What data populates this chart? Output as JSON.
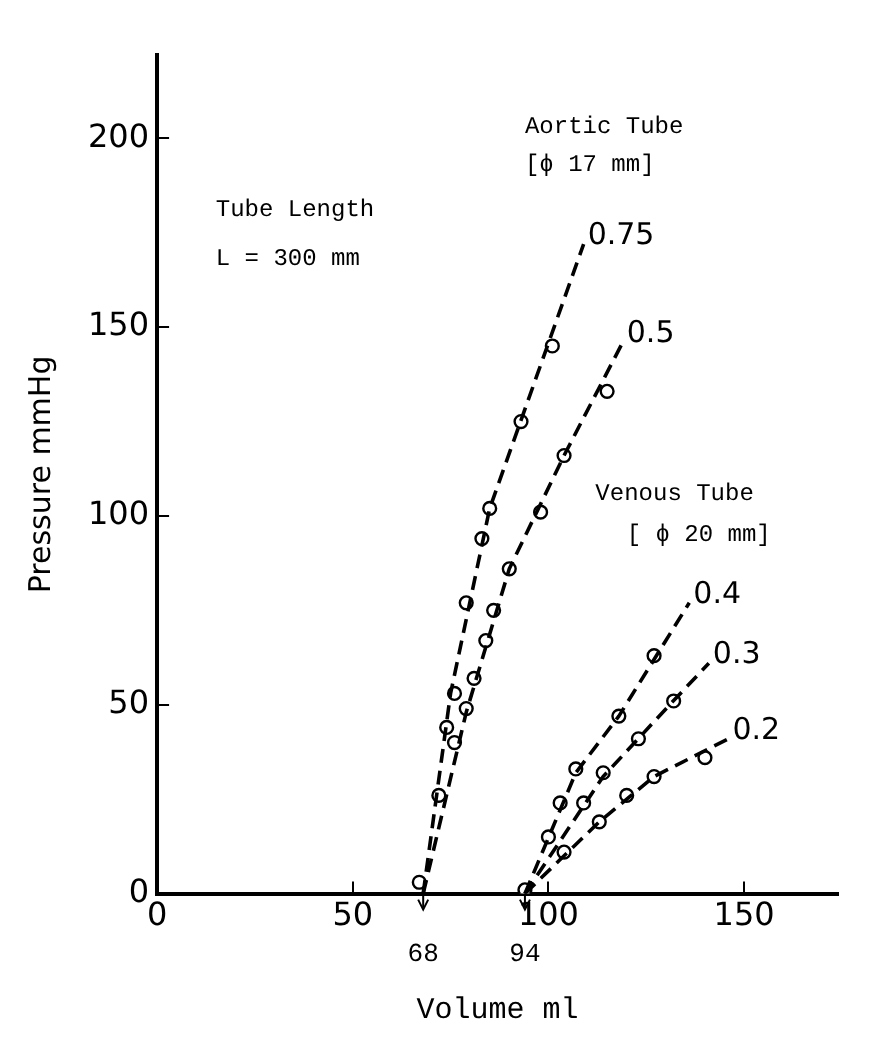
{
  "chart_data": {
    "type": "scatter",
    "xlabel": "Volume ml",
    "ylabel": "Pressure mmHg",
    "xlim": [
      0,
      174
    ],
    "xticks": [
      0,
      50,
      100,
      150
    ],
    "ylim": [
      0,
      222
    ],
    "yticks": [
      0,
      50,
      100,
      150,
      200
    ],
    "grid": false,
    "legend": false,
    "annotations": [
      "Aortic Tube",
      "[ϕ 17 mm]",
      "Tube Length",
      "L = 300 mm",
      "Venous Tube",
      "[ ϕ 20 mm]",
      {
        "text": "68",
        "x": 68,
        "y": 0
      },
      {
        "text": "94",
        "x": 94,
        "y": 0
      }
    ],
    "series": [
      {
        "type": "line",
        "name": "0.75",
        "color": "#000000",
        "marker": "none",
        "line_style": "dashed",
        "x": [
          68,
          75,
          85,
          97,
          109
        ],
        "values": [
          0,
          53,
          102,
          137,
          172
        ]
      },
      {
        "type": "line",
        "name": "0.5",
        "color": "#000000",
        "marker": "none",
        "line_style": "dashed",
        "x": [
          68,
          79,
          90,
          104,
          119
        ],
        "values": [
          0,
          48,
          86,
          116,
          146
        ]
      },
      {
        "type": "line",
        "name": "0.4",
        "color": "#000000",
        "marker": "none",
        "line_style": "dashed",
        "x": [
          94,
          107,
          118,
          136
        ],
        "values": [
          0,
          32,
          47,
          77
        ]
      },
      {
        "type": "line",
        "name": "0.3",
        "color": "#000000",
        "marker": "none",
        "line_style": "dashed",
        "x": [
          94,
          114,
          131,
          141
        ],
        "values": [
          0,
          31,
          50,
          61
        ]
      },
      {
        "type": "line",
        "name": "0.2",
        "color": "#000000",
        "marker": "none",
        "line_style": "dashed",
        "x": [
          94,
          113,
          127,
          146
        ],
        "values": [
          0,
          19,
          31,
          41
        ]
      },
      {
        "type": "scatter",
        "color": "#000000",
        "marker": "circle",
        "x": [
          67,
          72,
          74,
          76,
          79,
          83,
          85,
          93,
          101
        ],
        "values": [
          3,
          26,
          44,
          53,
          77,
          94,
          102,
          125,
          145
        ]
      },
      {
        "type": "scatter",
        "color": "#000000",
        "marker": "circle",
        "x": [
          76,
          79,
          81,
          84,
          86,
          90,
          98,
          104,
          115
        ],
        "values": [
          40,
          49,
          57,
          67,
          75,
          86,
          101,
          116,
          133
        ]
      },
      {
        "type": "scatter",
        "color": "#000000",
        "marker": "circle",
        "x": [
          94,
          100,
          103,
          107,
          118,
          127
        ],
        "values": [
          1,
          15,
          24,
          33,
          47,
          63
        ]
      },
      {
        "type": "scatter",
        "color": "#000000",
        "marker": "circle",
        "x": [
          109,
          114,
          123,
          132
        ],
        "values": [
          24,
          32,
          41,
          51
        ]
      },
      {
        "type": "scatter",
        "color": "#000000",
        "marker": "circle",
        "x": [
          104,
          113,
          120,
          127,
          140
        ],
        "values": [
          11,
          19,
          26,
          31,
          36
        ]
      }
    ]
  }
}
